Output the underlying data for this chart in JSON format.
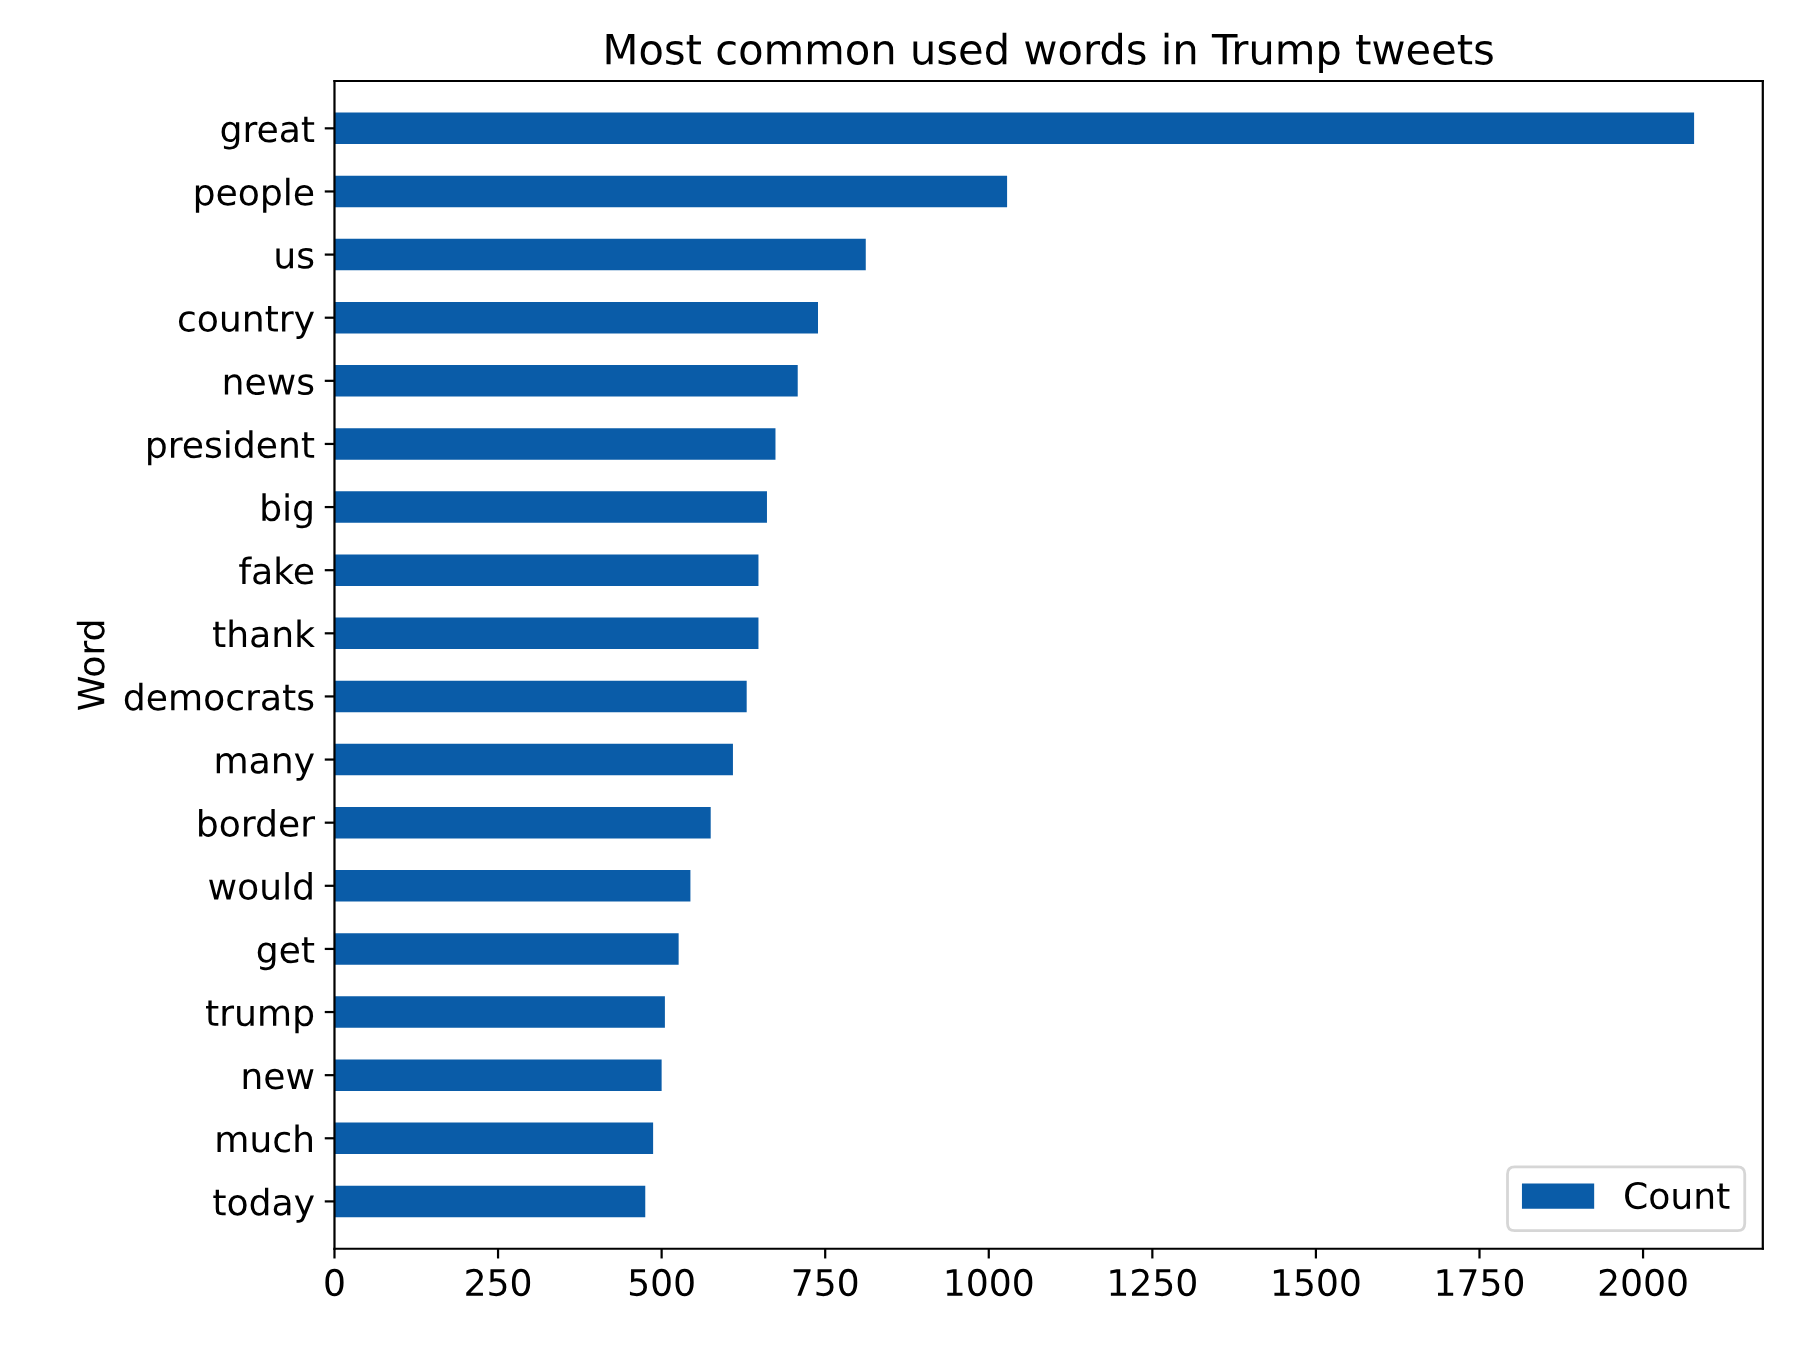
{
  "chart_data": {
    "type": "bar",
    "orientation": "horizontal",
    "title": "Most common used words in Trump tweets",
    "ylabel": "Word",
    "categories": [
      "great",
      "people",
      "us",
      "country",
      "news",
      "president",
      "big",
      "fake",
      "thank",
      "democrats",
      "many",
      "border",
      "would",
      "get",
      "trump",
      "new",
      "much",
      "today"
    ],
    "series": [
      {
        "name": "Count",
        "color": "#0a5ca8",
        "values": [
          2078,
          1028,
          812,
          739,
          708,
          674,
          661,
          648,
          648,
          630,
          609,
          575,
          544,
          526,
          505,
          500,
          487,
          475
        ]
      }
    ],
    "xlim": [
      0,
      2183
    ],
    "xticks": [
      0,
      250,
      500,
      750,
      1000,
      1250,
      1500,
      1750,
      2000
    ],
    "legend": "lower right",
    "grid": false
  }
}
